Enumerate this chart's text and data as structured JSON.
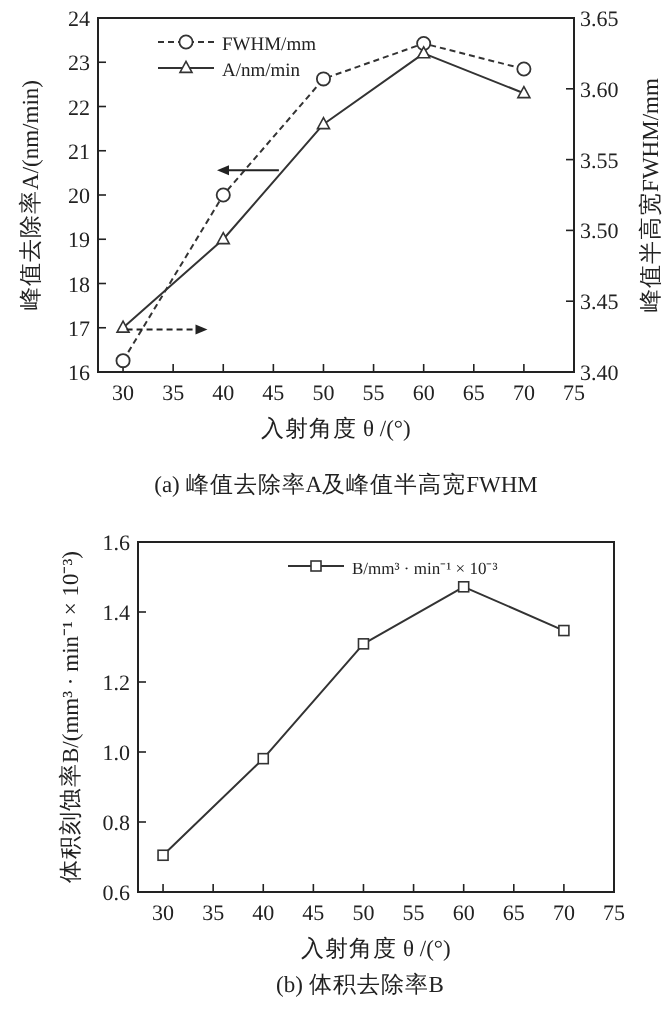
{
  "chart_data": [
    {
      "type": "line",
      "title": "(a) 峰值去除率A及峰值半高宽FWHM",
      "xlabel": "入射角度 θ /(°)",
      "ylabel": "峰值去除率A/(nm/min)",
      "y2label": "峰值半高宽FWHM/mm",
      "x": [
        30,
        40,
        50,
        60,
        70
      ],
      "series": [
        {
          "name": "FWHM/mm",
          "color": "#333333",
          "axis": "y2",
          "marker": "circle",
          "line_style": "dashed",
          "values": [
            3.408,
            3.525,
            3.607,
            3.632,
            3.614
          ]
        },
        {
          "name": "A/nm/min",
          "color": "#333333",
          "marker": "triangle",
          "line_style": "solid",
          "values": [
            17.0,
            19.0,
            21.6,
            23.2,
            22.3
          ]
        }
      ],
      "xlim": [
        27.5,
        75
      ],
      "xticks": [
        30,
        35,
        40,
        45,
        50,
        55,
        60,
        65,
        70,
        75
      ],
      "ylim": [
        16,
        24
      ],
      "yticks": [
        16,
        17,
        18,
        19,
        20,
        21,
        22,
        23,
        24
      ],
      "y2lim": [
        3.4,
        3.65
      ],
      "y2ticks": [
        {
          "value": 3.4,
          "label": "3.40"
        },
        {
          "value": 3.45,
          "label": "3.45"
        },
        {
          "value": 3.5,
          "label": "3.50"
        },
        {
          "value": 3.55,
          "label": "3.55"
        },
        {
          "value": 3.6,
          "label": "3.60"
        },
        {
          "value": 3.65,
          "label": "3.65"
        }
      ],
      "legend": "top",
      "grid": false
    },
    {
      "type": "line",
      "title": "(b) 体积去除率B",
      "xlabel": "入射角度 θ /(°)",
      "ylabel": "体积刻蚀率B/(mm³ · min⁻¹ × 10⁻³)",
      "x": [
        30,
        40,
        50,
        60,
        70
      ],
      "series": [
        {
          "name": "B/mm³ · min⁻¹ × 10⁻³",
          "color": "#333333",
          "marker": "square",
          "line_style": "solid",
          "values": [
            0.705,
            0.981,
            1.309,
            1.472,
            1.347
          ]
        }
      ],
      "xlim": [
        27.5,
        75
      ],
      "xticks": [
        30,
        35,
        40,
        45,
        50,
        55,
        60,
        65,
        70,
        75
      ],
      "ylim": [
        0.6,
        1.6
      ],
      "yticks": [
        {
          "value": 0.6,
          "label": "0.6"
        },
        {
          "value": 0.8,
          "label": "0.8"
        },
        {
          "value": 1.0,
          "label": "1.0"
        },
        {
          "value": 1.2,
          "label": "1.2"
        },
        {
          "value": 1.4,
          "label": "1.4"
        },
        {
          "value": 1.6,
          "label": "1.6"
        }
      ],
      "legend": "top right",
      "grid": false
    }
  ]
}
